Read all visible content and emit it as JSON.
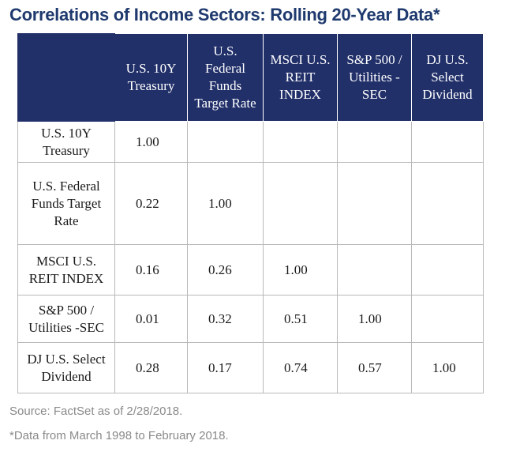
{
  "title": "Correlations of Income Sectors: Rolling 20-Year Data*",
  "chart_data": {
    "type": "table",
    "title": "Correlations of Income Sectors: Rolling 20-Year Data*",
    "columns": [
      "U.S. 10Y\nTreasury",
      "U.S.\nFederal\nFunds\nTarget Rate",
      "MSCI U.S.\nREIT\nINDEX",
      "S&P 500 /\nUtilities -\nSEC",
      "DJ U.S.\nSelect\nDividend"
    ],
    "rows": [
      {
        "label": "U.S. 10Y\nTreasury",
        "values": [
          "1.00",
          "",
          "",
          "",
          ""
        ]
      },
      {
        "label": "U.S. Federal\nFunds Target\nRate",
        "values": [
          "0.22",
          "1.00",
          "",
          "",
          ""
        ]
      },
      {
        "label": "MSCI U.S.\nREIT INDEX",
        "values": [
          "0.16",
          "0.26",
          "1.00",
          "",
          ""
        ]
      },
      {
        "label": "S&P 500 /\nUtilities -SEC",
        "values": [
          "0.01",
          "0.32",
          "0.51",
          "1.00",
          ""
        ]
      },
      {
        "label": "DJ U.S. Select\nDividend",
        "values": [
          "0.28",
          "0.17",
          "0.74",
          "0.57",
          "1.00"
        ]
      }
    ]
  },
  "source": "Source: FactSet as of 2/28/2018.",
  "note": "*Data from March 1998 to February 2018.",
  "colors": {
    "header_bg": "#22306a",
    "title": "#1f3a6e"
  }
}
